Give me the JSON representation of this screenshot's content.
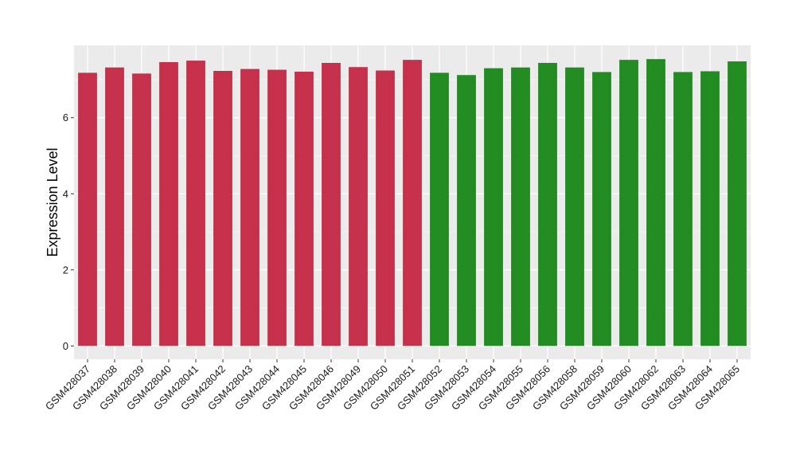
{
  "chart_data": {
    "type": "bar",
    "title": "",
    "xlabel": "",
    "ylabel": "Expression Level",
    "ylim": [
      -0.35,
      7.9
    ],
    "yticks": [
      0,
      2,
      4,
      6
    ],
    "grid": true,
    "legend": "none",
    "categories": [
      "GSM428037",
      "GSM428038",
      "GSM428039",
      "GSM428040",
      "GSM428041",
      "GSM428042",
      "GSM428043",
      "GSM428044",
      "GSM428045",
      "GSM428046",
      "GSM428049",
      "GSM428050",
      "GSM428051",
      "GSM428052",
      "GSM428053",
      "GSM428054",
      "GSM428055",
      "GSM428056",
      "GSM428058",
      "GSM428059",
      "GSM428060",
      "GSM428062",
      "GSM428063",
      "GSM428064",
      "GSM428065"
    ],
    "values": [
      7.18,
      7.32,
      7.16,
      7.46,
      7.5,
      7.23,
      7.28,
      7.26,
      7.21,
      7.44,
      7.33,
      7.24,
      7.52,
      7.18,
      7.12,
      7.3,
      7.32,
      7.44,
      7.32,
      7.2,
      7.52,
      7.54,
      7.2,
      7.22,
      7.48
    ],
    "bar_colors": [
      "#C5304A",
      "#C5304A",
      "#C5304A",
      "#C5304A",
      "#C5304A",
      "#C5304A",
      "#C5304A",
      "#C5304A",
      "#C5304A",
      "#C5304A",
      "#C5304A",
      "#C5304A",
      "#C5304A",
      "#228B22",
      "#228B22",
      "#228B22",
      "#228B22",
      "#228B22",
      "#228B22",
      "#228B22",
      "#228B22",
      "#228B22",
      "#228B22",
      "#228B22",
      "#228B22"
    ],
    "panel_background": "#EBEBEB",
    "grid_color": "#FFFFFF"
  }
}
